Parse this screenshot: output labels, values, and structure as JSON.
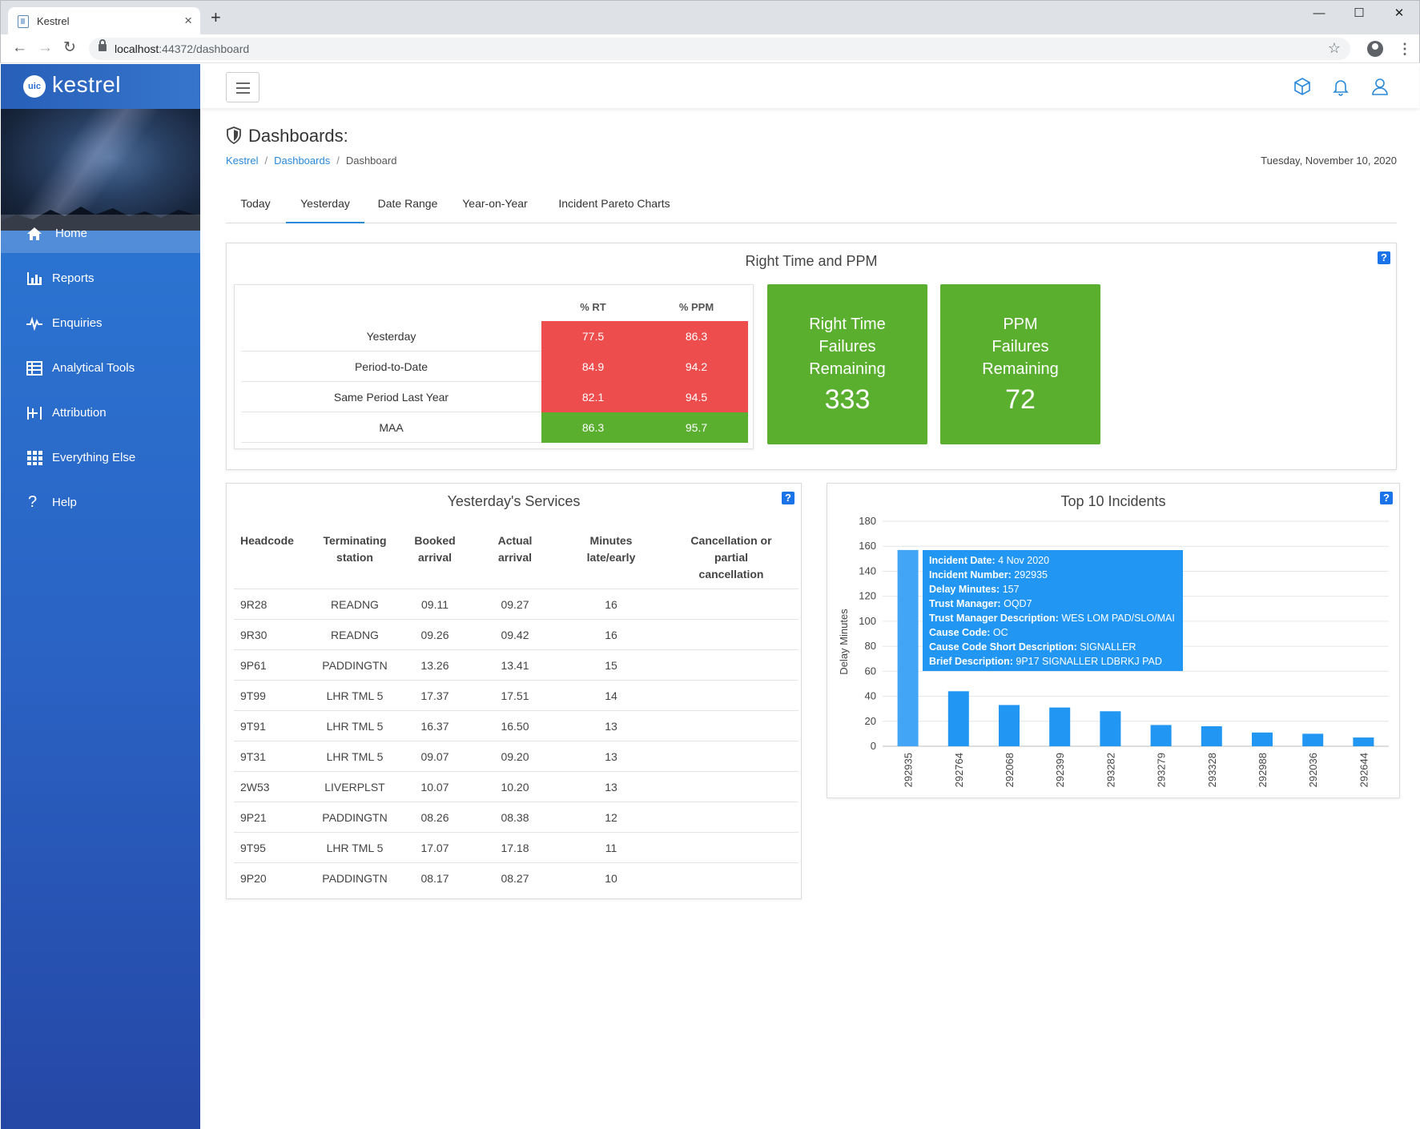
{
  "browser": {
    "tab_title": "Kestrel",
    "url_host": "localhost",
    "url_path": ":44372/dashboard"
  },
  "sidebar": {
    "brand_badge": "uic",
    "brand": "kestrel",
    "items": [
      {
        "label": "Home",
        "icon": "home-icon",
        "active": true
      },
      {
        "label": "Reports",
        "icon": "bar-chart-icon"
      },
      {
        "label": "Enquiries",
        "icon": "pulse-icon"
      },
      {
        "label": "Analytical Tools",
        "icon": "table-icon"
      },
      {
        "label": "Attribution",
        "icon": "attribution-icon"
      },
      {
        "label": "Everything Else",
        "icon": "grid-icon"
      },
      {
        "label": "Help",
        "icon": "question-icon"
      }
    ]
  },
  "page": {
    "title": "Dashboards:",
    "breadcrumb": [
      "Kestrel",
      "Dashboards",
      "Dashboard"
    ],
    "date": "Tuesday, November 10, 2020",
    "tabs": [
      "Today",
      "Yesterday",
      "Date Range",
      "Year-on-Year",
      "Incident Pareto Charts"
    ],
    "active_tab": "Yesterday"
  },
  "rtppm": {
    "title": "Right Time and PPM",
    "col_rt": "% RT",
    "col_ppm": "% PPM",
    "rows": [
      {
        "label": "Yesterday",
        "rt": "77.5",
        "ppm": "86.3",
        "status": "bad"
      },
      {
        "label": "Period-to-Date",
        "rt": "84.9",
        "ppm": "94.2",
        "status": "bad"
      },
      {
        "label": "Same Period Last Year",
        "rt": "82.1",
        "ppm": "94.5",
        "status": "bad"
      },
      {
        "label": "MAA",
        "rt": "86.3",
        "ppm": "95.7",
        "status": "good"
      }
    ],
    "rt_failures": {
      "line1": "Right Time",
      "line2": "Failures",
      "line3": "Remaining",
      "value": "333"
    },
    "ppm_failures": {
      "line1": "PPM",
      "line2": "Failures",
      "line3": "Remaining",
      "value": "72"
    },
    "colors": {
      "bad": "#ee4d4d",
      "good": "#5aaf2f"
    }
  },
  "services": {
    "title": "Yesterday's Services",
    "headers": {
      "headcode": "Headcode",
      "term1": "Terminating",
      "term2": "station",
      "booked1": "Booked",
      "booked2": "arrival",
      "actual1": "Actual",
      "actual2": "arrival",
      "min1": "Minutes",
      "min2": "late/early",
      "canc1": "Cancellation or",
      "canc2": "partial",
      "canc3": "cancellation"
    },
    "rows": [
      [
        "9R28",
        "READNG",
        "09.11",
        "09.27",
        "16",
        ""
      ],
      [
        "9R30",
        "READNG",
        "09.26",
        "09.42",
        "16",
        ""
      ],
      [
        "9P61",
        "PADDINGTN",
        "13.26",
        "13.41",
        "15",
        ""
      ],
      [
        "9T99",
        "LHR TML 5",
        "17.37",
        "17.51",
        "14",
        ""
      ],
      [
        "9T91",
        "LHR TML 5",
        "16.37",
        "16.50",
        "13",
        ""
      ],
      [
        "9T31",
        "LHR TML 5",
        "09.07",
        "09.20",
        "13",
        ""
      ],
      [
        "2W53",
        "LIVERPLST",
        "10.07",
        "10.20",
        "13",
        ""
      ],
      [
        "9P21",
        "PADDINGTN",
        "08.26",
        "08.38",
        "12",
        ""
      ],
      [
        "9T95",
        "LHR TML 5",
        "17.07",
        "17.18",
        "11",
        ""
      ],
      [
        "9P20",
        "PADDINGTN",
        "08.17",
        "08.27",
        "10",
        ""
      ]
    ]
  },
  "incidents": {
    "title": "Top 10 Incidents",
    "tooltip": [
      {
        "k": "Incident Date:",
        "v": "4 Nov 2020"
      },
      {
        "k": "Incident Number:",
        "v": "292935"
      },
      {
        "k": "Delay Minutes:",
        "v": "157"
      },
      {
        "k": "Trust Manager:",
        "v": "OQD7"
      },
      {
        "k": "Trust Manager Description:",
        "v": "WES LOM PAD/SLO/MAI"
      },
      {
        "k": "Cause Code:",
        "v": "OC"
      },
      {
        "k": "Cause Code Short Description:",
        "v": "SIGNALLER"
      },
      {
        "k": "Brief Description:",
        "v": "9P17 SIGNALLER LDBRKJ PAD"
      }
    ]
  },
  "chart_data": {
    "type": "bar",
    "title": "Top 10 Incidents",
    "xlabel": "",
    "ylabel": "Delay Minutes",
    "ylim": [
      0,
      180
    ],
    "yticks": [
      0,
      20,
      40,
      60,
      80,
      100,
      120,
      140,
      160,
      180
    ],
    "grid": true,
    "categories": [
      "292935",
      "292764",
      "292068",
      "292399",
      "293282",
      "293279",
      "293328",
      "292988",
      "292036",
      "292644"
    ],
    "values": [
      157,
      44,
      33,
      31,
      28,
      17,
      16,
      11,
      10,
      7
    ],
    "bar_color": "#2196f3",
    "highlight_color": "#42a5f5",
    "highlighted": "292935"
  }
}
